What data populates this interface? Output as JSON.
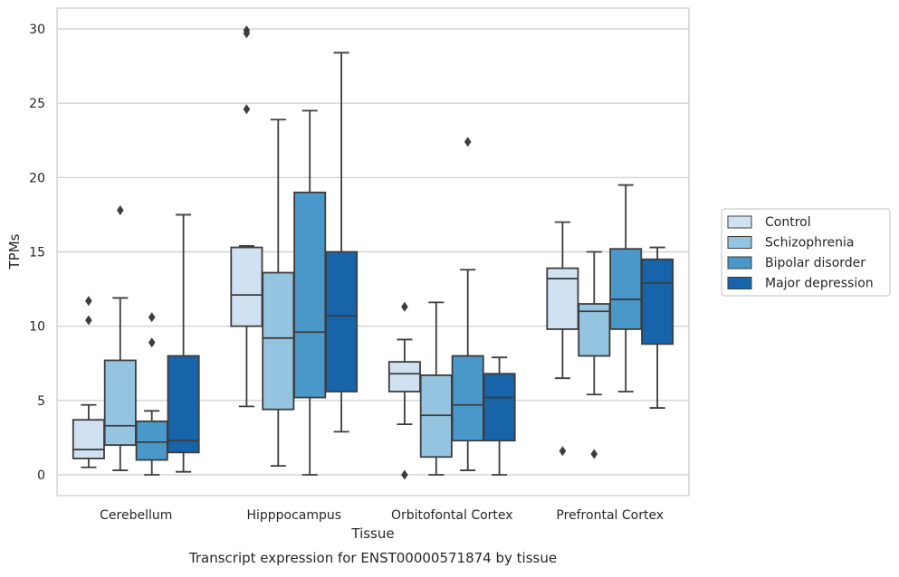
{
  "caption": "Transcript expression for ENST00000571874 by tissue",
  "chart_data": {
    "type": "box",
    "title": "",
    "xlabel": "Tissue",
    "ylabel": "TPMs",
    "ylim": [
      -1.4,
      31.4
    ],
    "yticks": [
      0,
      5,
      10,
      15,
      20,
      25,
      30
    ],
    "grid": "horizontal",
    "legend_position": "right",
    "categories": [
      "Cerebellum",
      "Hipppocampus",
      "Orbitofontal Cortex",
      "Prefrontal Cortex"
    ],
    "series": [
      {
        "name": "Control",
        "color": "#d0e1f2",
        "boxes": [
          {
            "whislo": 0.5,
            "q1": 1.1,
            "med": 1.7,
            "q3": 3.7,
            "whishi": 4.7,
            "fliers": [
              10.4,
              11.7
            ]
          },
          {
            "whislo": 4.6,
            "q1": 10.0,
            "med": 12.1,
            "q3": 15.3,
            "whishi": 15.4,
            "fliers": [
              24.6,
              29.7,
              29.9
            ]
          },
          {
            "whislo": 3.4,
            "q1": 5.6,
            "med": 6.8,
            "q3": 7.6,
            "whishi": 9.1,
            "fliers": [
              0.0,
              11.3
            ]
          },
          {
            "whislo": 6.5,
            "q1": 9.8,
            "med": 13.2,
            "q3": 13.9,
            "whishi": 17.0,
            "fliers": [
              1.6
            ]
          }
        ]
      },
      {
        "name": "Schizophrenia",
        "color": "#94c4df",
        "boxes": [
          {
            "whislo": 0.3,
            "q1": 2.0,
            "med": 3.3,
            "q3": 7.7,
            "whishi": 11.9,
            "fliers": [
              17.8
            ]
          },
          {
            "whislo": 0.6,
            "q1": 4.4,
            "med": 9.2,
            "q3": 13.6,
            "whishi": 23.9,
            "fliers": []
          },
          {
            "whislo": 0.0,
            "q1": 1.2,
            "med": 4.0,
            "q3": 6.7,
            "whishi": 11.6,
            "fliers": []
          },
          {
            "whislo": 5.4,
            "q1": 8.0,
            "med": 11.0,
            "q3": 11.5,
            "whishi": 15.0,
            "fliers": [
              1.4
            ]
          }
        ]
      },
      {
        "name": "Bipolar disorder",
        "color": "#4a98c9",
        "boxes": [
          {
            "whislo": 0.0,
            "q1": 1.0,
            "med": 2.2,
            "q3": 3.6,
            "whishi": 4.3,
            "fliers": [
              8.9,
              10.6
            ]
          },
          {
            "whislo": 0.0,
            "q1": 5.2,
            "med": 9.6,
            "q3": 19.0,
            "whishi": 24.5,
            "fliers": []
          },
          {
            "whislo": 0.3,
            "q1": 2.3,
            "med": 4.7,
            "q3": 8.0,
            "whishi": 13.8,
            "fliers": [
              22.4
            ]
          },
          {
            "whislo": 5.6,
            "q1": 9.8,
            "med": 11.8,
            "q3": 15.2,
            "whishi": 19.5,
            "fliers": []
          }
        ]
      },
      {
        "name": "Major depression",
        "color": "#1764ab",
        "boxes": [
          {
            "whislo": 0.2,
            "q1": 1.5,
            "med": 2.3,
            "q3": 8.0,
            "whishi": 17.5,
            "fliers": []
          },
          {
            "whislo": 2.9,
            "q1": 5.6,
            "med": 10.7,
            "q3": 15.0,
            "whishi": 28.4,
            "fliers": []
          },
          {
            "whislo": 0.0,
            "q1": 2.3,
            "med": 5.2,
            "q3": 6.8,
            "whishi": 7.9,
            "fliers": []
          },
          {
            "whislo": 4.5,
            "q1": 8.8,
            "med": 12.9,
            "q3": 14.5,
            "whishi": 15.3,
            "fliers": []
          }
        ]
      }
    ]
  }
}
